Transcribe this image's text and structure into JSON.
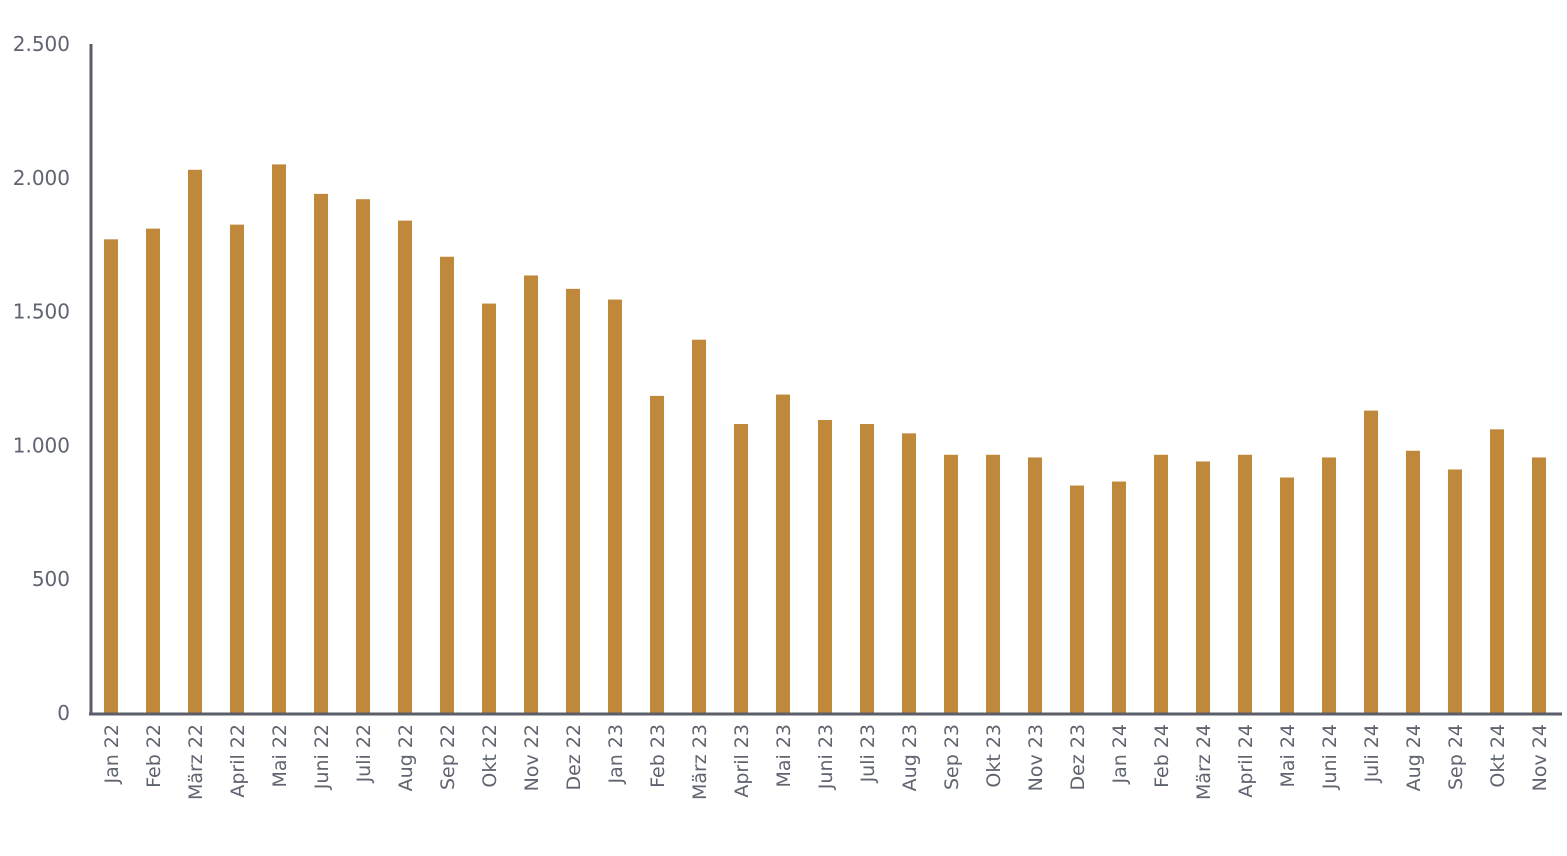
{
  "chart_data": {
    "type": "bar",
    "title": "",
    "xlabel": "",
    "ylabel": "",
    "ylim": [
      0,
      2500
    ],
    "yticks": [
      0,
      500,
      1000,
      1500,
      2000,
      2500
    ],
    "ytick_labels": [
      "0",
      "500",
      "1.000",
      "1.500",
      "2.000",
      "2.500"
    ],
    "grid": false,
    "bar_color": "#bf883b",
    "axis_color": "#5a5e69",
    "categories": [
      "Jan 22",
      "Feb 22",
      "März 22",
      "April 22",
      "Mai 22",
      "Juni 22",
      "Juli 22",
      "Aug 22",
      "Sep 22",
      "Okt 22",
      "Nov 22",
      "Dez 22",
      "Jan 23",
      "Feb 23",
      "März 23",
      "April 23",
      "Mai 23",
      "Juni 23",
      "Juli 23",
      "Aug 23",
      "Sep 23",
      "Okt 23",
      "Nov 23",
      "Dez 23",
      "Jan 24",
      "Feb 24",
      "März 24",
      "April 24",
      "Mai 24",
      "Juni 24",
      "Juli 24",
      "Aug 24",
      "Sep 24",
      "Okt 24",
      "Nov 24"
    ],
    "values": [
      1770,
      1810,
      2030,
      1825,
      2050,
      1940,
      1920,
      1840,
      1705,
      1530,
      1635,
      1585,
      1545,
      1185,
      1395,
      1080,
      1190,
      1095,
      1080,
      1045,
      965,
      965,
      955,
      850,
      865,
      965,
      940,
      965,
      880,
      955,
      1130,
      980,
      910,
      1060,
      955
    ]
  }
}
